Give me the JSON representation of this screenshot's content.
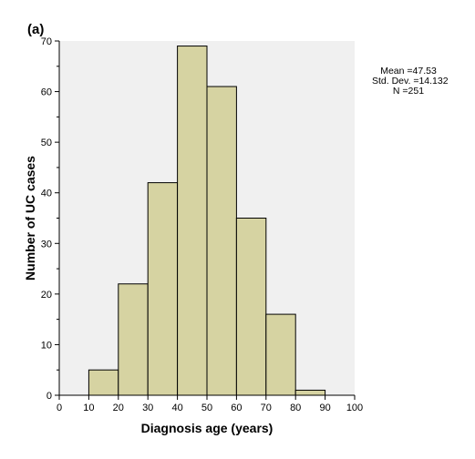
{
  "panel_label": "(a)",
  "stats": {
    "mean": "Mean =47.53",
    "std_dev": "Std. Dev. =14.132",
    "n": "N =251"
  },
  "chart_data": {
    "type": "bar",
    "subtype": "histogram",
    "xlabel": "Diagnosis age (years)",
    "ylabel": "Number of UC cases",
    "xlim": [
      0,
      100
    ],
    "ylim": [
      0,
      70
    ],
    "x_ticks": [
      0,
      10,
      20,
      30,
      40,
      50,
      60,
      70,
      80,
      90,
      100
    ],
    "y_ticks": [
      0,
      10,
      20,
      30,
      40,
      50,
      60,
      70
    ],
    "bins": [
      {
        "from": 10,
        "to": 20,
        "count": 5
      },
      {
        "from": 20,
        "to": 30,
        "count": 22
      },
      {
        "from": 30,
        "to": 40,
        "count": 42
      },
      {
        "from": 40,
        "to": 50,
        "count": 69
      },
      {
        "from": 50,
        "to": 60,
        "count": 61
      },
      {
        "from": 60,
        "to": 70,
        "count": 35
      },
      {
        "from": 70,
        "to": 80,
        "count": 16
      },
      {
        "from": 80,
        "to": 90,
        "count": 1
      }
    ],
    "colors": {
      "bar_fill": "#d6d3a2",
      "plot_background": "#f0f0f0",
      "bar_stroke": "#000000"
    },
    "grid": false
  }
}
